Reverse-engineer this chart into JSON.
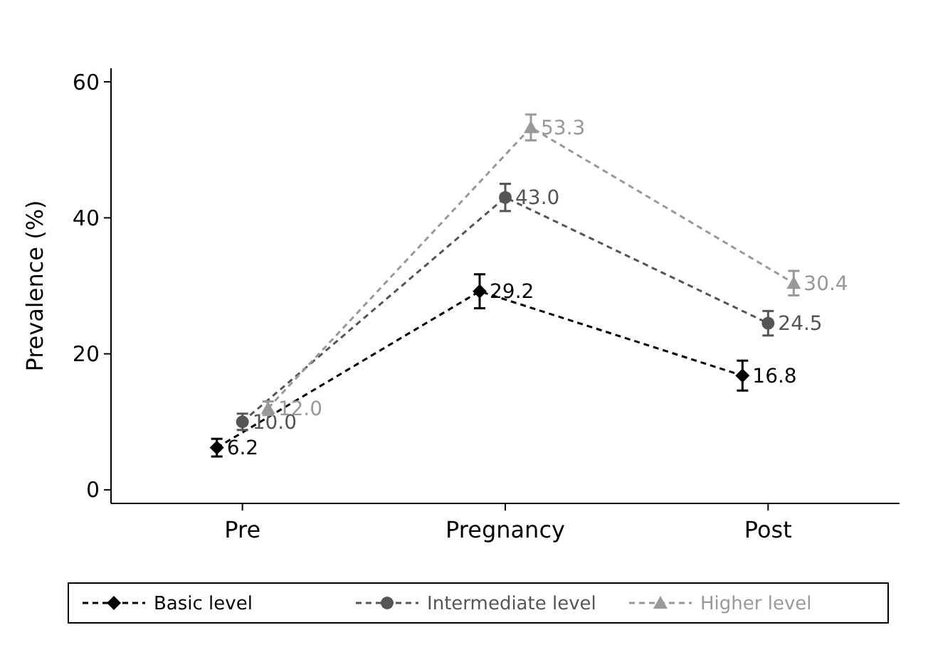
{
  "chart_data": {
    "type": "line",
    "ylabel": "Prevalence (%)",
    "categories": [
      "Pre",
      "Pregnancy",
      "Post"
    ],
    "ylim": [
      -2,
      62
    ],
    "yticks": [
      0,
      20,
      40,
      60
    ],
    "grid": false,
    "legend": "bottom",
    "line_style": "dashed",
    "series": [
      {
        "name": "Basic level",
        "color": "#000000",
        "marker": "diamond",
        "values": [
          6.2,
          29.2,
          16.8
        ],
        "errors": [
          1.3,
          2.5,
          2.2
        ],
        "value_labels": [
          "6.2",
          "29.2",
          "16.8"
        ]
      },
      {
        "name": "Intermediate level",
        "color": "#555555",
        "marker": "circle",
        "values": [
          10.0,
          43.0,
          24.5
        ],
        "errors": [
          1.2,
          2.0,
          1.8
        ],
        "value_labels": [
          "10.0",
          "43.0",
          "24.5"
        ]
      },
      {
        "name": "Higher level",
        "color": "#999999",
        "marker": "triangle",
        "values": [
          12.0,
          53.3,
          30.4
        ],
        "errors": [
          1.0,
          1.9,
          1.8
        ],
        "value_labels": [
          "12.0",
          "53.3",
          "30.4"
        ]
      }
    ]
  }
}
